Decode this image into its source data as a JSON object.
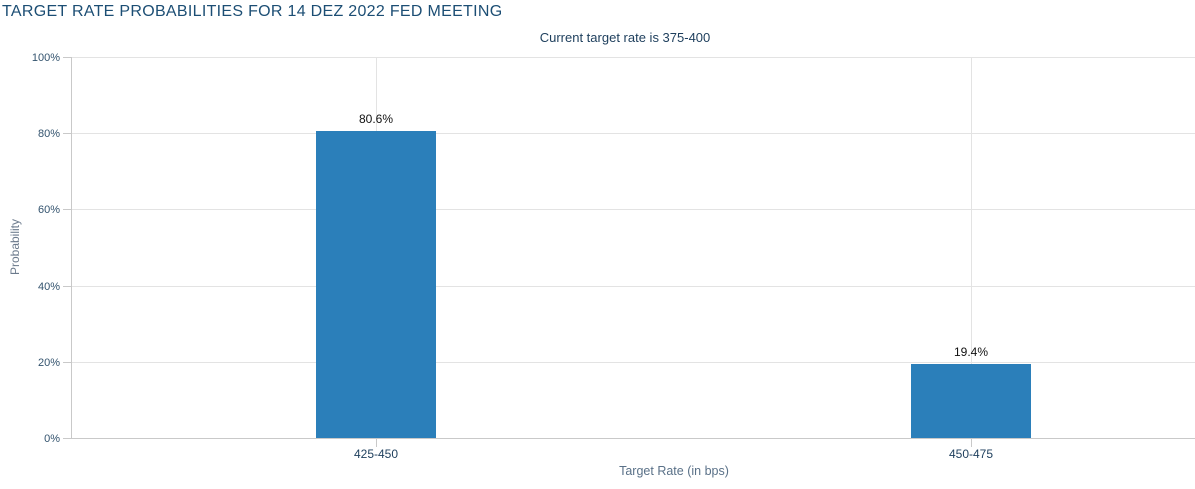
{
  "chart_data": {
    "type": "bar",
    "title": "TARGET RATE PROBABILITIES FOR 14 DEZ 2022 FED MEETING",
    "subtitle": "Current target rate is 375-400",
    "categories": [
      "425-450",
      "450-475"
    ],
    "values": [
      80.6,
      19.4
    ],
    "value_labels": [
      "80.6%",
      "19.4%"
    ],
    "xlabel": "Target Rate (in bps)",
    "ylabel": "Probability",
    "ylim": [
      0,
      100
    ],
    "ytick_step": 20,
    "ytick_labels": [
      "0%",
      "20%",
      "40%",
      "60%",
      "80%",
      "100%"
    ],
    "grid": true,
    "legend": "none"
  },
  "colors": {
    "title": "#1c4e74",
    "subtitle": "#1d3e5c",
    "bar": "#2b7fba",
    "gridline": "#e3e3e3",
    "axis_line": "#c9c9c9",
    "y_tick_label": "#33536e",
    "x_tick_label": "#1d3e5c",
    "data_label": "#111111",
    "background": "#ffffff"
  }
}
